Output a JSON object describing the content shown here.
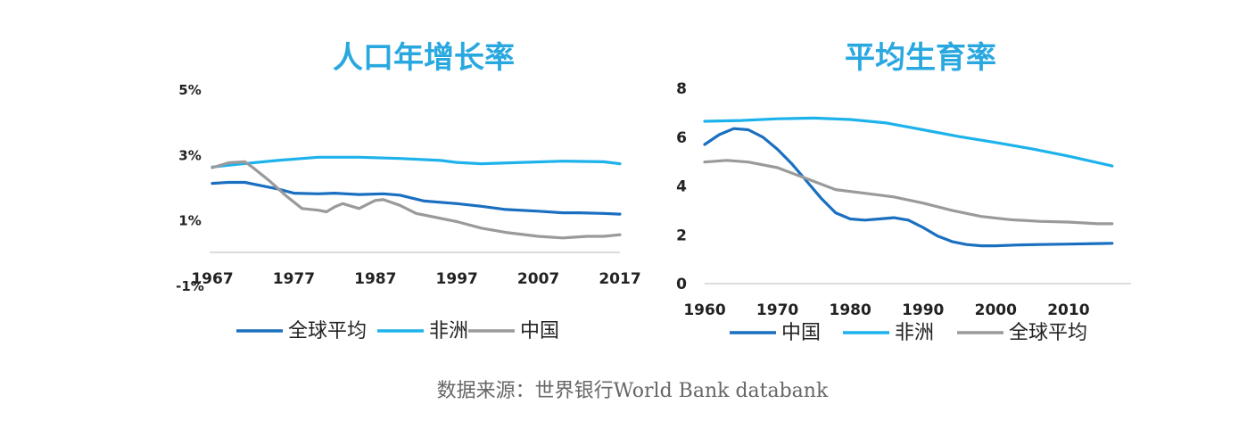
{
  "source_note": "数据来源：世界银行World Bank databank",
  "colors": {
    "blue_dark": "#1a6fc0",
    "blue_light": "#1eb2ec",
    "gray": "#9a9a9a",
    "title": "#29a8e0"
  },
  "chart_data": [
    {
      "type": "line",
      "title": "人口年增长率",
      "ytick_labels": [
        "5%",
        "3%",
        "1%",
        "-1%"
      ],
      "yticks": [
        5,
        3,
        1,
        -1
      ],
      "xtick_labels": [
        "1967",
        "1977",
        "1987",
        "1997",
        "2007",
        "2017"
      ],
      "xticks": [
        1967,
        1977,
        1987,
        1997,
        2007,
        2017
      ],
      "xlim": [
        1967,
        2017
      ],
      "ylim": [
        -1,
        5
      ],
      "grid": false,
      "legend_position": "bottom",
      "series": [
        {
          "name": "全球平均",
          "color": "#1a6fc0",
          "x": [
            1967,
            1969,
            1971,
            1973,
            1975,
            1977,
            1980,
            1982,
            1985,
            1988,
            1990,
            1993,
            1997,
            2000,
            2003,
            2007,
            2010,
            2012,
            2015,
            2017
          ],
          "values": [
            2.12,
            2.15,
            2.15,
            2.05,
            1.95,
            1.82,
            1.8,
            1.82,
            1.78,
            1.8,
            1.76,
            1.58,
            1.5,
            1.42,
            1.32,
            1.27,
            1.22,
            1.22,
            1.2,
            1.18
          ]
        },
        {
          "name": "非洲",
          "color": "#1eb2ec",
          "x": [
            1967,
            1970,
            1975,
            1980,
            1985,
            1990,
            1995,
            1997,
            2000,
            2005,
            2010,
            2015,
            2017
          ],
          "values": [
            2.62,
            2.7,
            2.82,
            2.92,
            2.92,
            2.88,
            2.82,
            2.76,
            2.72,
            2.76,
            2.8,
            2.78,
            2.72
          ]
        },
        {
          "name": "中国",
          "color": "#9a9a9a",
          "x": [
            1967,
            1969,
            1971,
            1972,
            1974,
            1976,
            1978,
            1980,
            1981,
            1982,
            1983,
            1985,
            1987,
            1988,
            1990,
            1992,
            1994,
            1997,
            2000,
            2003,
            2007,
            2010,
            2013,
            2015,
            2017
          ],
          "values": [
            2.6,
            2.75,
            2.78,
            2.6,
            2.2,
            1.75,
            1.35,
            1.3,
            1.25,
            1.4,
            1.5,
            1.35,
            1.6,
            1.62,
            1.45,
            1.2,
            1.1,
            0.95,
            0.75,
            0.62,
            0.5,
            0.45,
            0.5,
            0.5,
            0.55
          ]
        }
      ]
    },
    {
      "type": "line",
      "title": "平均生育率",
      "ytick_labels": [
        "8",
        "6",
        "4",
        "2",
        "0"
      ],
      "yticks": [
        8,
        6,
        4,
        2,
        0
      ],
      "xtick_labels": [
        "1960",
        "1970",
        "1980",
        "1990",
        "2000",
        "2010"
      ],
      "xticks": [
        1960,
        1970,
        1980,
        1990,
        2000,
        2010
      ],
      "xlim": [
        1960,
        2017
      ],
      "ylim": [
        0,
        8
      ],
      "grid": false,
      "legend_position": "bottom",
      "series": [
        {
          "name": "中国",
          "color": "#1a6fc0",
          "x": [
            1960,
            1962,
            1964,
            1966,
            1968,
            1970,
            1972,
            1974,
            1976,
            1978,
            1980,
            1982,
            1984,
            1986,
            1988,
            1990,
            1992,
            1994,
            1996,
            1998,
            2000,
            2003,
            2006,
            2010,
            2014,
            2016
          ],
          "values": [
            5.7,
            6.1,
            6.35,
            6.3,
            6.0,
            5.5,
            4.9,
            4.2,
            3.5,
            2.9,
            2.65,
            2.6,
            2.65,
            2.7,
            2.6,
            2.3,
            1.95,
            1.72,
            1.6,
            1.55,
            1.55,
            1.58,
            1.6,
            1.62,
            1.64,
            1.65
          ]
        },
        {
          "name": "非洲",
          "color": "#1eb2ec",
          "x": [
            1960,
            1965,
            1970,
            1975,
            1980,
            1985,
            1990,
            1995,
            2000,
            2005,
            2010,
            2016
          ],
          "values": [
            6.65,
            6.68,
            6.75,
            6.78,
            6.72,
            6.58,
            6.3,
            6.02,
            5.78,
            5.52,
            5.22,
            4.82
          ]
        },
        {
          "name": "全球平均",
          "color": "#9a9a9a",
          "x": [
            1960,
            1963,
            1966,
            1970,
            1974,
            1978,
            1982,
            1986,
            1990,
            1994,
            1998,
            2002,
            2006,
            2010,
            2014,
            2016
          ],
          "values": [
            4.98,
            5.05,
            4.98,
            4.75,
            4.3,
            3.85,
            3.7,
            3.55,
            3.3,
            3.0,
            2.75,
            2.62,
            2.55,
            2.52,
            2.45,
            2.45
          ]
        }
      ]
    }
  ]
}
